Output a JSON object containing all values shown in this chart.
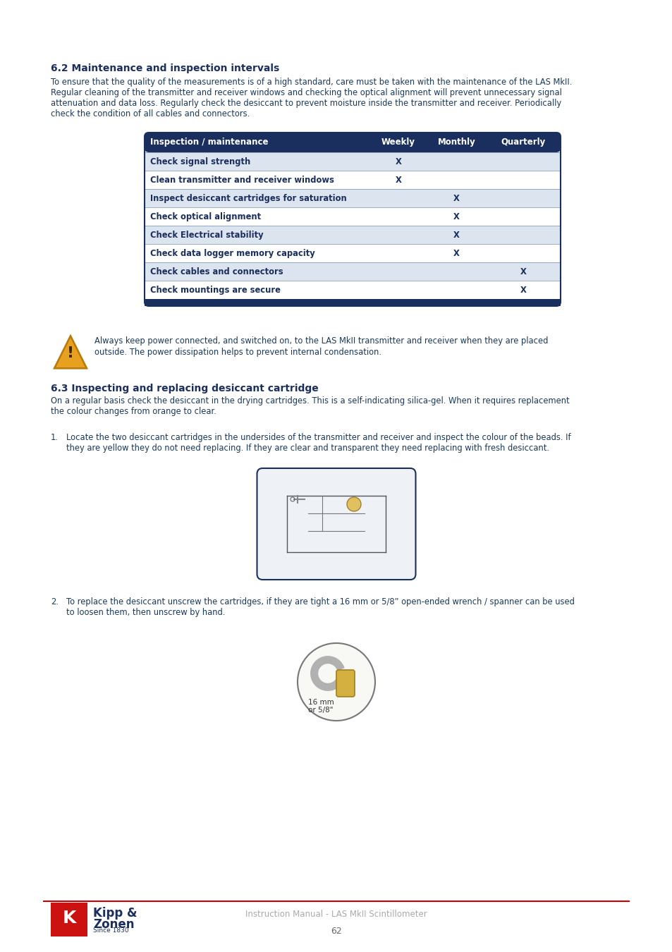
{
  "page_background": "#ffffff",
  "dark_navy": "#1b2f5e",
  "body_color": "#1b3a5c",
  "section_title_62": "6.2 Maintenance and inspection intervals",
  "section_body_62_lines": [
    "To ensure that the quality of the measurements is of a high standard, care must be taken with the maintenance of the LAS MkII.",
    "Regular cleaning of the transmitter and receiver windows and checking the optical alignment will prevent unnecessary signal",
    "attenuation and data loss. Regularly check the desiccant to prevent moisture inside the transmitter and receiver. Periodically",
    "check the condition of all cables and connectors."
  ],
  "table_header": [
    "Inspection / maintenance",
    "Weekly",
    "Monthly",
    "Quarterly"
  ],
  "table_header_bg": "#1b2f5e",
  "table_rows": [
    [
      "Check signal strength",
      "X",
      "",
      ""
    ],
    [
      "Clean transmitter and receiver windows",
      "X",
      "",
      ""
    ],
    [
      "Inspect desiccant cartridges for saturation",
      "",
      "X",
      ""
    ],
    [
      "Check optical alignment",
      "",
      "X",
      ""
    ],
    [
      "Check Electrical stability",
      "",
      "X",
      ""
    ],
    [
      "Check data logger memory capacity",
      "",
      "X",
      ""
    ],
    [
      "Check cables and connectors",
      "",
      "",
      "X"
    ],
    [
      "Check mountings are secure",
      "",
      "",
      "X"
    ]
  ],
  "table_row_bg_odd": "#dce5ef",
  "table_row_bg_even": "#ffffff",
  "warning_lines": [
    "Always keep power connected, and switched on, to the LAS MkII transmitter and receiver when they are placed",
    "outside. The power dissipation helps to prevent internal condensation."
  ],
  "section_title_63": "6.3 Inspecting and replacing desiccant cartridge",
  "section_body_63_lines": [
    "On a regular basis check the desiccant in the drying cartridges. This is a self-indicating silica-gel. When it requires replacement",
    "the colour changes from orange to clear."
  ],
  "step1_label": "1.",
  "step1_lines": [
    "Locate the two desiccant cartridges in the undersides of the transmitter and receiver and inspect the colour of the beads. If",
    "they are yellow they do not need replacing. If they are clear and transparent they need replacing with fresh desiccant."
  ],
  "step2_label": "2.",
  "step2_lines": [
    "To replace the desiccant unscrew the cartridges, if they are tight a 16 mm or 5/8” open-ended wrench / spanner can be used",
    "to loosen them, then unscrew by hand."
  ],
  "wrench_label_line1": "16 mm",
  "wrench_label_line2": "or 5/8\"",
  "footer_text": "Instruction Manual - LAS MkII Scintillometer",
  "page_number": "62",
  "red_line_color": "#cc0000",
  "kipp_red": "#cc1111",
  "kipp_name1": "Kipp &",
  "kipp_name2": "Zonen",
  "kipp_since": "Since 1830"
}
